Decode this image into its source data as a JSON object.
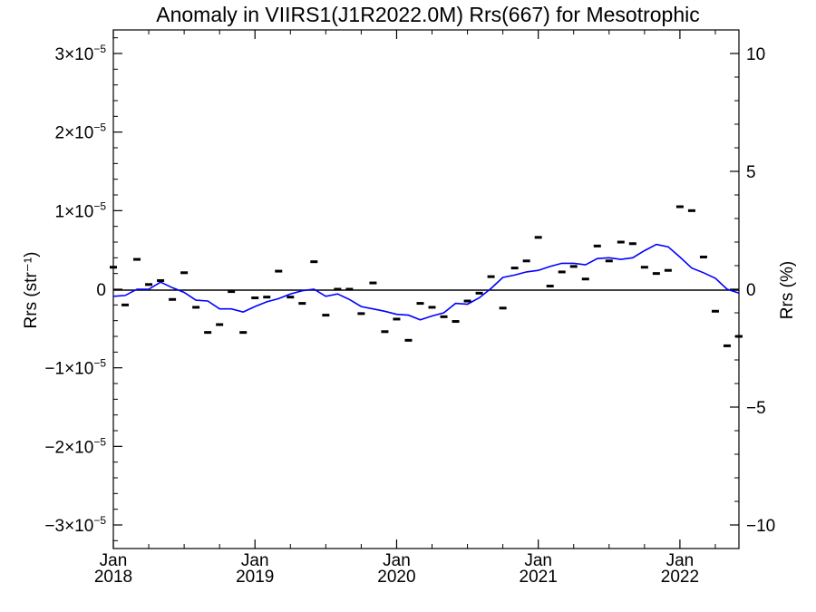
{
  "chart_data": {
    "type": "scatter",
    "title": "Anomaly in VIIRS1(J1R2022.0M) Rrs(667) for Mesotrophic",
    "ylabel_left": "Rrs (str⁻¹)",
    "ylabel_right": "Rrs (%)",
    "x_range": [
      "2018-01",
      "2022-06"
    ],
    "x_ticks": [
      {
        "month": "Jan",
        "year": "2018"
      },
      {
        "month": "Jan",
        "year": "2019"
      },
      {
        "month": "Jan",
        "year": "2020"
      },
      {
        "month": "Jan",
        "year": "2021"
      },
      {
        "month": "Jan",
        "year": "2022"
      }
    ],
    "ylim_left": [
      -3.3e-05,
      3.3e-05
    ],
    "ylim_right": [
      -11,
      11
    ],
    "y_ticks_left": [
      {
        "value": 3e-05,
        "mantissa": "3",
        "sup": "−5"
      },
      {
        "value": 2e-05,
        "mantissa": "2",
        "sup": "−5"
      },
      {
        "value": 1e-05,
        "mantissa": "1",
        "sup": "−5"
      },
      {
        "value": 0,
        "mantissa": "0",
        "sup": ""
      },
      {
        "value": -1e-05,
        "mantissa": "−1",
        "sup": "−5"
      },
      {
        "value": -2e-05,
        "mantissa": "−2",
        "sup": "−5"
      },
      {
        "value": -3e-05,
        "mantissa": "−3",
        "sup": "−5"
      }
    ],
    "y_ticks_right": [
      "10",
      "5",
      "0",
      "−5",
      "−10"
    ],
    "times_sign": "×10",
    "grid": false,
    "zero_line": true,
    "colors": {
      "points": "#000000",
      "line": "#0000ff",
      "axes": "#000000"
    },
    "series": [
      {
        "kind": "points",
        "x": [
          "2018-01",
          "2018-02",
          "2018-03",
          "2018-04",
          "2018-05",
          "2018-06",
          "2018-07",
          "2018-08",
          "2018-09",
          "2018-10",
          "2018-11",
          "2018-12",
          "2019-01",
          "2019-02",
          "2019-03",
          "2019-04",
          "2019-05",
          "2019-06",
          "2019-07",
          "2019-08",
          "2019-09",
          "2019-10",
          "2019-11",
          "2019-12",
          "2020-01",
          "2020-02",
          "2020-03",
          "2020-04",
          "2020-05",
          "2020-06",
          "2020-07",
          "2020-08",
          "2020-09",
          "2020-10",
          "2020-11",
          "2020-12",
          "2021-01",
          "2021-02",
          "2021-03",
          "2021-04",
          "2021-05",
          "2021-06",
          "2021-07",
          "2021-08",
          "2021-09",
          "2021-10",
          "2021-11",
          "2021-12",
          "2022-01",
          "2022-02",
          "2022-03",
          "2022-04",
          "2022-05",
          "2022-06"
        ],
        "y": [
          2.8e-06,
          -2e-06,
          3.8e-06,
          6e-07,
          1.1e-06,
          -1.3e-06,
          2.1e-06,
          -2.3e-06,
          -5.5e-06,
          -4.5e-06,
          -3e-07,
          -5.5e-06,
          -1.1e-06,
          -1e-06,
          2.3e-06,
          -1e-06,
          -1.8e-06,
          3.5e-06,
          -3.3e-06,
          0.0,
          0.0,
          -3.1e-06,
          8e-07,
          -5.4e-06,
          -3.8e-06,
          -6.5e-06,
          -1.8e-06,
          -2.3e-06,
          -3.5e-06,
          -4.1e-06,
          -1.5e-06,
          -5e-07,
          1.6e-06,
          -2.4e-06,
          2.7e-06,
          3.6e-06,
          6.6e-06,
          4e-07,
          2.2e-06,
          2.9e-06,
          1.3e-06,
          5.5e-06,
          3.6e-06,
          6e-06,
          5.8e-06,
          2.8e-06,
          2e-06,
          2.4e-06,
          1.05e-05,
          1e-05,
          4.1e-06,
          -2.8e-06,
          -7.2e-06,
          -6e-06
        ]
      },
      {
        "kind": "line",
        "x": [
          "2018-01",
          "2018-02",
          "2018-03",
          "2018-04",
          "2018-05",
          "2018-06",
          "2018-07",
          "2018-08",
          "2018-09",
          "2018-10",
          "2018-11",
          "2018-12",
          "2019-01",
          "2019-02",
          "2019-03",
          "2019-04",
          "2019-05",
          "2019-06",
          "2019-07",
          "2019-08",
          "2019-09",
          "2019-10",
          "2019-11",
          "2019-12",
          "2020-01",
          "2020-02",
          "2020-03",
          "2020-04",
          "2020-05",
          "2020-06",
          "2020-07",
          "2020-08",
          "2020-09",
          "2020-10",
          "2020-11",
          "2020-12",
          "2021-01",
          "2021-02",
          "2021-03",
          "2021-04",
          "2021-05",
          "2021-06",
          "2021-07",
          "2021-08",
          "2021-09",
          "2021-10",
          "2021-11",
          "2021-12",
          "2022-01",
          "2022-02",
          "2022-03",
          "2022-04",
          "2022-05",
          "2022-06"
        ],
        "y": [
          -9e-07,
          -8e-07,
          0.0,
          0.0,
          9e-07,
          2e-07,
          -4e-07,
          -1.4e-06,
          -1.5e-06,
          -2.5e-06,
          -2.5e-06,
          -2.9e-06,
          -2.2e-06,
          -1.6e-06,
          -1.2e-06,
          -6e-07,
          -2e-07,
          0.0,
          -9e-07,
          -6e-07,
          -1.3e-06,
          -2.2e-06,
          -2.5e-06,
          -2.8e-06,
          -3.2e-06,
          -3.3e-06,
          -3.9e-06,
          -3.4e-06,
          -3e-06,
          -1.8e-06,
          -1.9e-06,
          -1.1e-06,
          1e-07,
          1.5e-06,
          1.8e-06,
          2.2e-06,
          2.4e-06,
          2.9e-06,
          3.3e-06,
          3.3e-06,
          3.1e-06,
          3.9e-06,
          4e-06,
          3.8e-06,
          4e-06,
          4.9e-06,
          5.7e-06,
          5.4e-06,
          4.1e-06,
          2.7e-06,
          2.1e-06,
          1.4e-06,
          0.0,
          -5e-07
        ]
      }
    ]
  }
}
